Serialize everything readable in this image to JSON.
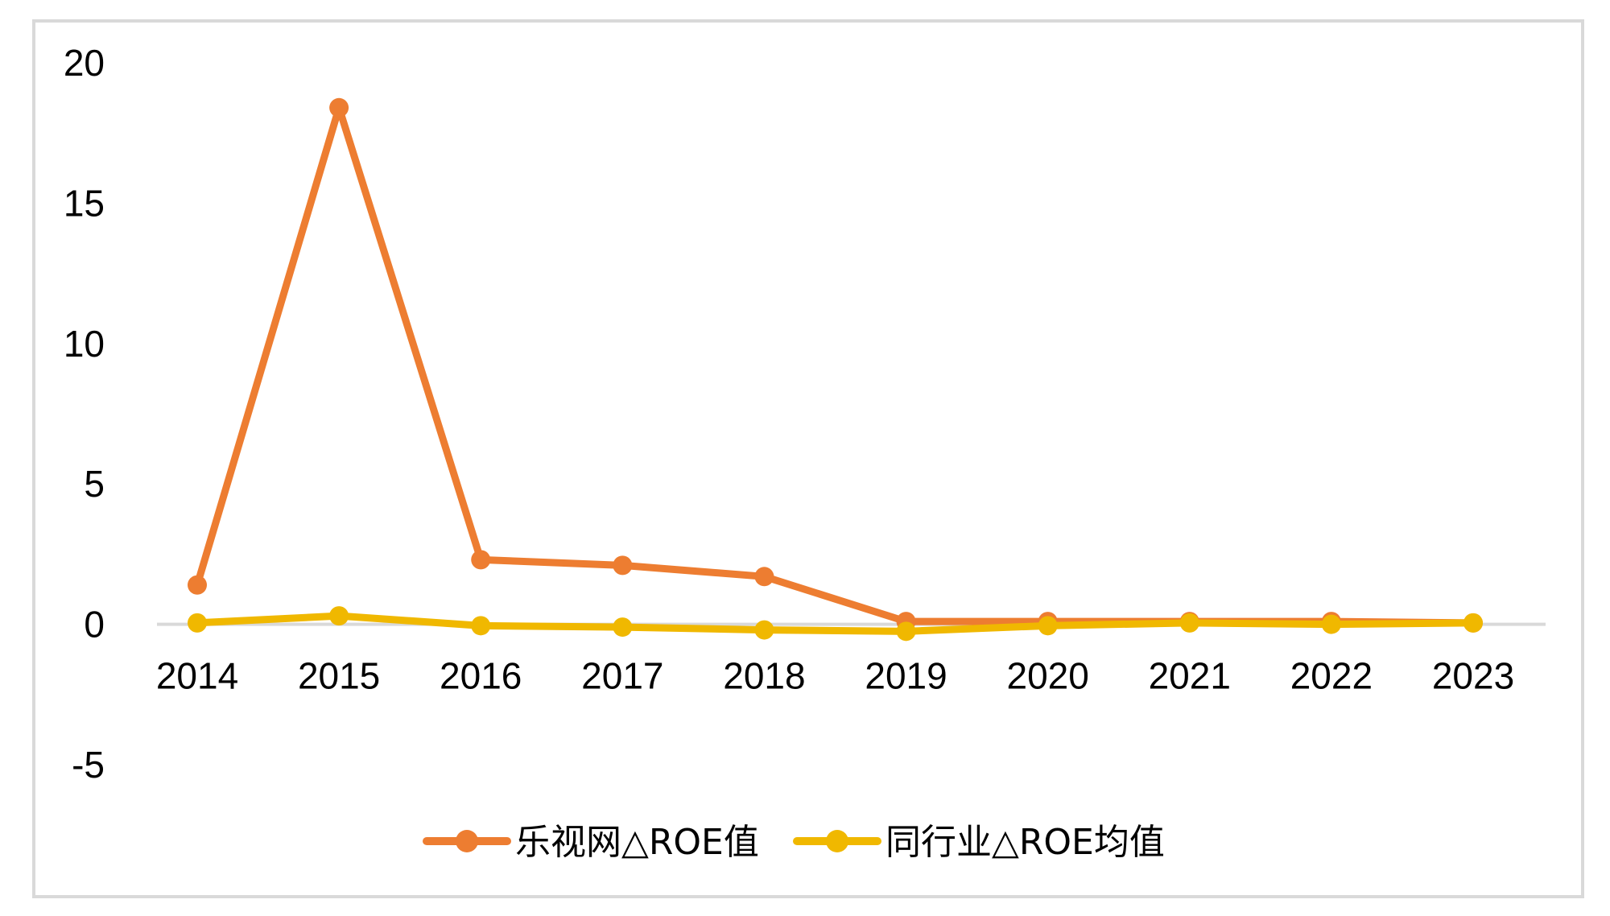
{
  "chart_data": {
    "type": "line",
    "title": "",
    "xlabel": "",
    "ylabel": "",
    "categories": [
      "2014",
      "2015",
      "2016",
      "2017",
      "2018",
      "2019",
      "2020",
      "2021",
      "2022",
      "2023"
    ],
    "ylim": [
      -5,
      20
    ],
    "yticks": [
      "20",
      "15",
      "10",
      "5",
      "0",
      "-5"
    ],
    "ytick_values": [
      20,
      15,
      10,
      5,
      0,
      -5
    ],
    "grid": false,
    "legend_position": "bottom",
    "series": [
      {
        "name": "乐视网△ROE值",
        "color": "#ED7D31",
        "values": [
          1.4,
          18.4,
          2.3,
          2.1,
          1.7,
          0.1,
          0.1,
          0.1,
          0.1,
          0.05
        ]
      },
      {
        "name": "同行业△ROE均值",
        "color": "#F0B800",
        "values": [
          0.05,
          0.3,
          -0.05,
          -0.1,
          -0.2,
          -0.25,
          -0.05,
          0.05,
          0.0,
          0.05
        ]
      }
    ],
    "axis_color": "#d9d9d9"
  }
}
